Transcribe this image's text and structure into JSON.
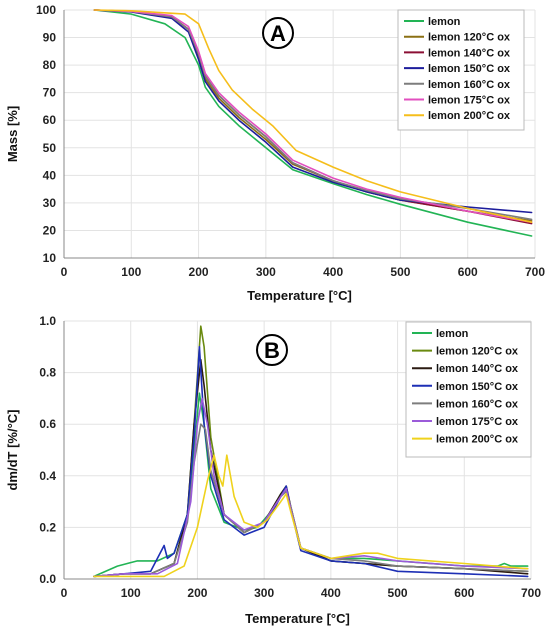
{
  "chart_data": [
    {
      "type": "line",
      "panel_label": "A",
      "xlabel": "Temperature [°C]",
      "ylabel": "Mass [%]",
      "xlim": [
        0,
        700
      ],
      "ylim": [
        10,
        100
      ],
      "xticks": [
        0,
        100,
        200,
        300,
        400,
        500,
        600,
        700
      ],
      "yticks": [
        10,
        20,
        30,
        40,
        50,
        60,
        70,
        80,
        90,
        100
      ],
      "grid": true,
      "legend_position": "top-right",
      "series": [
        {
          "name": "lemon",
          "color": "#22b455",
          "x": [
            45,
            100,
            150,
            180,
            200,
            210,
            230,
            260,
            300,
            340,
            400,
            450,
            500,
            600,
            695
          ],
          "y": [
            100,
            98.5,
            95,
            90,
            80,
            72,
            65,
            58,
            50,
            42,
            37,
            33,
            29.5,
            23,
            18
          ]
        },
        {
          "name": "lemon 120°C ox",
          "color": "#8b7014",
          "x": [
            45,
            100,
            160,
            185,
            200,
            210,
            230,
            260,
            300,
            340,
            400,
            450,
            500,
            600,
            695
          ],
          "y": [
            100,
            99.5,
            97.5,
            93,
            83,
            75,
            68,
            61,
            53,
            44,
            38,
            34,
            31,
            27,
            23.5
          ]
        },
        {
          "name": "lemon 140°C ox",
          "color": "#8b0f34",
          "x": [
            45,
            100,
            160,
            185,
            200,
            210,
            230,
            260,
            300,
            340,
            400,
            450,
            500,
            600,
            695
          ],
          "y": [
            100,
            99.5,
            97.5,
            93,
            84,
            76,
            69,
            62,
            54,
            44.5,
            38,
            34,
            31,
            27,
            22.5
          ]
        },
        {
          "name": "lemon 150°C ox",
          "color": "#1d1d9c",
          "x": [
            45,
            100,
            160,
            185,
            200,
            210,
            230,
            260,
            300,
            340,
            400,
            450,
            500,
            600,
            695
          ],
          "y": [
            100,
            99.3,
            97,
            92,
            82,
            74,
            67,
            60,
            52,
            43,
            37.5,
            34,
            31,
            28.5,
            26.5
          ]
        },
        {
          "name": "lemon 160°C ox",
          "color": "#7d7d7d",
          "x": [
            45,
            100,
            160,
            185,
            200,
            210,
            230,
            260,
            300,
            340,
            400,
            450,
            500,
            600,
            695
          ],
          "y": [
            100,
            99.5,
            97.5,
            93,
            84,
            76,
            69,
            62,
            54,
            44.5,
            38,
            34.5,
            31.5,
            28,
            24
          ]
        },
        {
          "name": "lemon 175°C ox",
          "color": "#e24fbf",
          "x": [
            45,
            100,
            160,
            185,
            200,
            210,
            230,
            260,
            300,
            340,
            400,
            450,
            500,
            600,
            695
          ],
          "y": [
            100,
            99.5,
            98,
            94,
            85,
            77,
            70,
            63,
            55,
            45.5,
            39,
            35,
            32,
            27,
            23
          ]
        },
        {
          "name": "lemon 200°C ox",
          "color": "#f5be1b",
          "x": [
            45,
            100,
            180,
            200,
            215,
            230,
            250,
            280,
            310,
            345,
            400,
            450,
            500,
            600,
            695
          ],
          "y": [
            100,
            99.7,
            98.5,
            95,
            86,
            78,
            71,
            64,
            58,
            49,
            43,
            38,
            34,
            28,
            23
          ]
        }
      ]
    },
    {
      "type": "line",
      "panel_label": "B",
      "xlabel": "Temperature [°C]",
      "ylabel": "dm/dT [%/°C]",
      "xlim": [
        0,
        700
      ],
      "ylim": [
        0,
        1
      ],
      "xticks": [
        0,
        100,
        200,
        300,
        400,
        500,
        600,
        700
      ],
      "yticks": [
        "0.0",
        "0.2",
        "0.4",
        "0.6",
        "0.8",
        "1.0"
      ],
      "grid": true,
      "legend_position": "top-right",
      "series": [
        {
          "name": "lemon",
          "color": "#22b455",
          "x": [
            45,
            80,
            110,
            140,
            165,
            185,
            195,
            203,
            210,
            220,
            240,
            270,
            290,
            310,
            325,
            333,
            340,
            355,
            400,
            450,
            500,
            600,
            650,
            660,
            670,
            695
          ],
          "y": [
            0.01,
            0.05,
            0.07,
            0.07,
            0.1,
            0.25,
            0.5,
            0.72,
            0.6,
            0.35,
            0.22,
            0.19,
            0.2,
            0.26,
            0.33,
            0.35,
            0.27,
            0.12,
            0.08,
            0.08,
            0.07,
            0.05,
            0.05,
            0.06,
            0.05,
            0.05
          ]
        },
        {
          "name": "lemon 120°C ox",
          "color": "#6a8a10",
          "x": [
            45,
            90,
            130,
            165,
            185,
            195,
            205,
            210,
            220,
            240,
            270,
            300,
            325,
            333,
            340,
            355,
            400,
            450,
            500,
            600,
            695
          ],
          "y": [
            0.01,
            0.02,
            0.02,
            0.06,
            0.25,
            0.6,
            0.98,
            0.9,
            0.55,
            0.25,
            0.18,
            0.22,
            0.32,
            0.34,
            0.27,
            0.12,
            0.07,
            0.06,
            0.05,
            0.04,
            0.03
          ]
        },
        {
          "name": "lemon 140°C ox",
          "color": "#2b1b12",
          "x": [
            45,
            90,
            130,
            165,
            185,
            195,
            205,
            210,
            220,
            240,
            270,
            300,
            325,
            333,
            340,
            355,
            400,
            450,
            500,
            600,
            695
          ],
          "y": [
            0.01,
            0.02,
            0.02,
            0.06,
            0.25,
            0.6,
            0.85,
            0.75,
            0.5,
            0.25,
            0.18,
            0.22,
            0.33,
            0.36,
            0.28,
            0.12,
            0.07,
            0.06,
            0.05,
            0.04,
            0.02
          ]
        },
        {
          "name": "lemon 150°C ox",
          "color": "#1d2fb5",
          "x": [
            45,
            90,
            130,
            150,
            155,
            165,
            185,
            195,
            203,
            210,
            220,
            240,
            270,
            300,
            325,
            333,
            340,
            355,
            400,
            450,
            500,
            600,
            695
          ],
          "y": [
            0.01,
            0.02,
            0.03,
            0.13,
            0.08,
            0.1,
            0.25,
            0.55,
            0.9,
            0.6,
            0.4,
            0.23,
            0.17,
            0.2,
            0.32,
            0.36,
            0.27,
            0.11,
            0.07,
            0.06,
            0.03,
            0.02,
            0.01
          ]
        },
        {
          "name": "lemon 160°C ox",
          "color": "#7d7d7d",
          "x": [
            45,
            90,
            130,
            165,
            185,
            195,
            205,
            212,
            220,
            240,
            270,
            300,
            325,
            333,
            340,
            355,
            400,
            450,
            500,
            600,
            695
          ],
          "y": [
            0.01,
            0.02,
            0.02,
            0.06,
            0.22,
            0.45,
            0.6,
            0.58,
            0.42,
            0.25,
            0.18,
            0.22,
            0.32,
            0.34,
            0.28,
            0.12,
            0.08,
            0.07,
            0.05,
            0.04,
            0.03
          ]
        },
        {
          "name": "lemon 175°C ox",
          "color": "#9b5bd9",
          "x": [
            45,
            90,
            140,
            170,
            190,
            200,
            207,
            215,
            225,
            240,
            270,
            300,
            325,
            333,
            340,
            355,
            400,
            450,
            500,
            600,
            695
          ],
          "y": [
            0.01,
            0.02,
            0.02,
            0.06,
            0.3,
            0.6,
            0.7,
            0.6,
            0.4,
            0.25,
            0.19,
            0.22,
            0.32,
            0.35,
            0.27,
            0.12,
            0.08,
            0.09,
            0.07,
            0.05,
            0.04
          ]
        },
        {
          "name": "lemon 200°C ox",
          "color": "#efd21c",
          "x": [
            45,
            100,
            150,
            180,
            200,
            215,
            225,
            232,
            238,
            244,
            255,
            270,
            290,
            305,
            325,
            333,
            340,
            355,
            400,
            450,
            470,
            500,
            600,
            695
          ],
          "y": [
            0.01,
            0.01,
            0.01,
            0.05,
            0.2,
            0.38,
            0.48,
            0.4,
            0.36,
            0.48,
            0.32,
            0.22,
            0.2,
            0.23,
            0.3,
            0.33,
            0.26,
            0.12,
            0.08,
            0.1,
            0.1,
            0.08,
            0.06,
            0.04
          ]
        }
      ]
    }
  ]
}
